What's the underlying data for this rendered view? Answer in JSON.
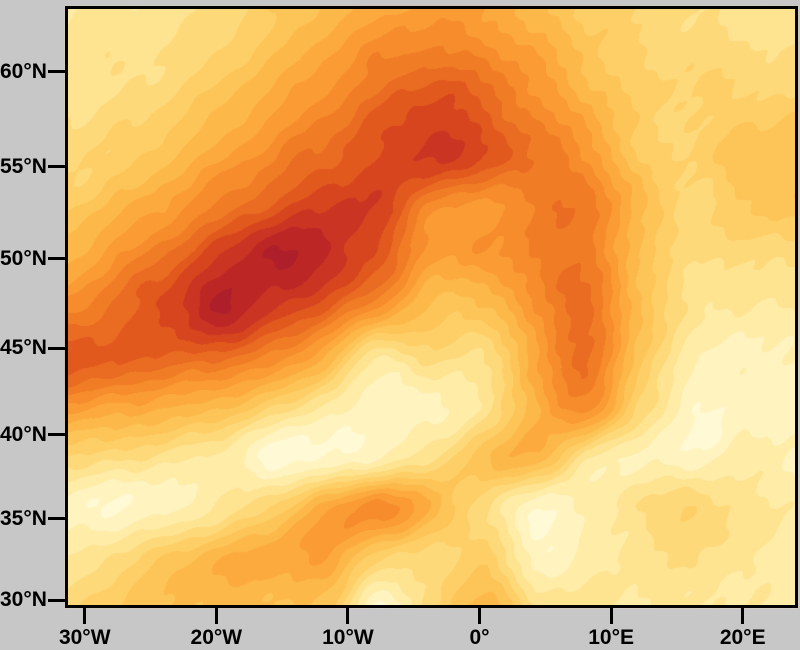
{
  "figure": {
    "background_color": "#c7c7c7",
    "frame_color": "#000000",
    "tick_color": "#000000",
    "label_color": "#000000"
  },
  "chart_data": {
    "type": "filled_contour_map",
    "title": "",
    "xlabel": "",
    "ylabel": "",
    "legend": "none",
    "grid_lines": "off",
    "projection": "regional lat-lon map, North Atlantic / Europe sector",
    "lon_range": [
      -31.5,
      24.2
    ],
    "lat_range": [
      29.5,
      63.4
    ],
    "x_axis": {
      "ticks": [
        {
          "value": -30,
          "label": "30°W"
        },
        {
          "value": -20,
          "label": "20°W"
        },
        {
          "value": -10,
          "label": "10°W"
        },
        {
          "value": 0,
          "label": "0°"
        },
        {
          "value": 10,
          "label": "10°E"
        },
        {
          "value": 20,
          "label": "20°E"
        }
      ]
    },
    "y_axis": {
      "ticks": [
        {
          "value": 60,
          "label": "60°N"
        },
        {
          "value": 55,
          "label": "55°N"
        },
        {
          "value": 50,
          "label": "50°N"
        },
        {
          "value": 45,
          "label": "45°N"
        },
        {
          "value": 40,
          "label": "40°N"
        },
        {
          "value": 35,
          "label": "35°N"
        },
        {
          "value": 30,
          "label": "30°N"
        }
      ]
    },
    "value_range": [
      0,
      100
    ],
    "n_levels": 19,
    "palette": [
      "#FFFEE9",
      "#FFF9D5",
      "#FFF3C0",
      "#FEECA7",
      "#FEE390",
      "#FED97A",
      "#FECF67",
      "#FDC458",
      "#FDB84A",
      "#FCAA3E",
      "#FA9B34",
      "#F68C2C",
      "#F17C26",
      "#EA6B22",
      "#E2591E",
      "#D7451E",
      "#CA3422",
      "#BC2726",
      "#AE1E2B"
    ],
    "features": {
      "primary_maximum": {
        "lon": -19,
        "lat": 49.5,
        "value": 96,
        "shape": "SW-NE elongated ellipse, darkest red"
      },
      "secondary_maximum": {
        "lon": -2,
        "lat": 56.5,
        "value": 86
      },
      "ridge": "high band curves from left edge ~44N northeast through max, arcs east near 57N, descends south along 6-8E and weakens",
      "interior_minimum": {
        "lon": -11,
        "lat": 41,
        "value": 8
      },
      "southern_band": {
        "value": 60,
        "path": "diagonal moderate orange band from ~28W,30N up to ~5W,37N"
      },
      "corners": "light cream/yellow in NW, E and SE sectors"
    },
    "grid": {
      "cols": 15,
      "rows": 13,
      "order": "row-major, row 0 = north (top), col 0 = west (left), uniform in plot pixels",
      "values": [
        [
          22,
          22,
          24,
          28,
          36,
          44,
          50,
          54,
          52,
          44,
          36,
          30,
          26,
          24,
          22
        ],
        [
          24,
          24,
          27,
          33,
          42,
          52,
          62,
          66,
          62,
          52,
          40,
          32,
          30,
          28,
          26
        ],
        [
          26,
          28,
          33,
          42,
          52,
          62,
          72,
          80,
          74,
          60,
          48,
          34,
          32,
          34,
          34
        ],
        [
          30,
          34,
          42,
          52,
          62,
          72,
          80,
          86,
          78,
          68,
          58,
          36,
          32,
          40,
          40
        ],
        [
          36,
          44,
          54,
          66,
          76,
          84,
          82,
          62,
          56,
          64,
          66,
          44,
          30,
          36,
          40
        ],
        [
          46,
          58,
          70,
          84,
          96,
          90,
          76,
          54,
          56,
          64,
          66,
          40,
          28,
          28,
          28
        ],
        [
          60,
          70,
          82,
          95,
          84,
          74,
          58,
          42,
          40,
          58,
          70,
          42,
          24,
          20,
          22
        ],
        [
          78,
          74,
          72,
          70,
          62,
          46,
          20,
          30,
          26,
          52,
          68,
          38,
          18,
          14,
          16
        ],
        [
          56,
          52,
          48,
          42,
          32,
          20,
          14,
          14,
          22,
          48,
          60,
          30,
          12,
          12,
          14
        ],
        [
          30,
          28,
          24,
          20,
          8,
          10,
          16,
          26,
          40,
          46,
          22,
          16,
          12,
          18,
          16
        ],
        [
          14,
          10,
          14,
          22,
          34,
          50,
          60,
          46,
          28,
          12,
          16,
          26,
          32,
          24,
          20
        ],
        [
          20,
          28,
          38,
          46,
          50,
          52,
          34,
          28,
          34,
          14,
          18,
          24,
          26,
          22,
          18
        ],
        [
          30,
          36,
          42,
          44,
          42,
          38,
          10,
          30,
          46,
          26,
          22,
          22,
          22,
          20,
          18
        ]
      ]
    }
  }
}
